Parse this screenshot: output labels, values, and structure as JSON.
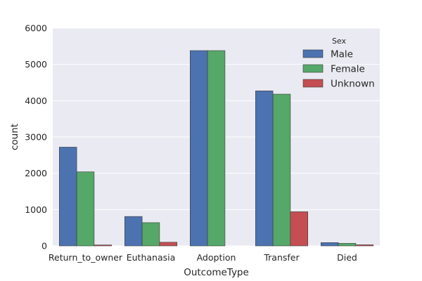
{
  "chart_data": {
    "type": "bar",
    "xlabel": "OutcomeType",
    "ylabel": "count",
    "categories": [
      "Return_to_owner",
      "Euthanasia",
      "Adoption",
      "Transfer",
      "Died"
    ],
    "series": [
      {
        "name": "Male",
        "values": [
          2720,
          810,
          5380,
          4270,
          90
        ]
      },
      {
        "name": "Female",
        "values": [
          2040,
          640,
          5380,
          4180,
          70
        ]
      },
      {
        "name": "Unknown",
        "values": [
          25,
          100,
          0,
          940,
          30
        ]
      }
    ],
    "ylim": [
      0,
      6000
    ],
    "yticks": [
      "0",
      "1000",
      "2000",
      "3000",
      "4000",
      "5000",
      "6000"
    ],
    "grid": true,
    "legend": {
      "title": "Sex",
      "placement": "top-right"
    },
    "colors": {
      "Male": "#4c72b0",
      "Female": "#55a868",
      "Unknown": "#c44e52",
      "plot_background": "#eaeaf2",
      "grid": "#ffffff",
      "edge": "#3a3a3a"
    }
  }
}
